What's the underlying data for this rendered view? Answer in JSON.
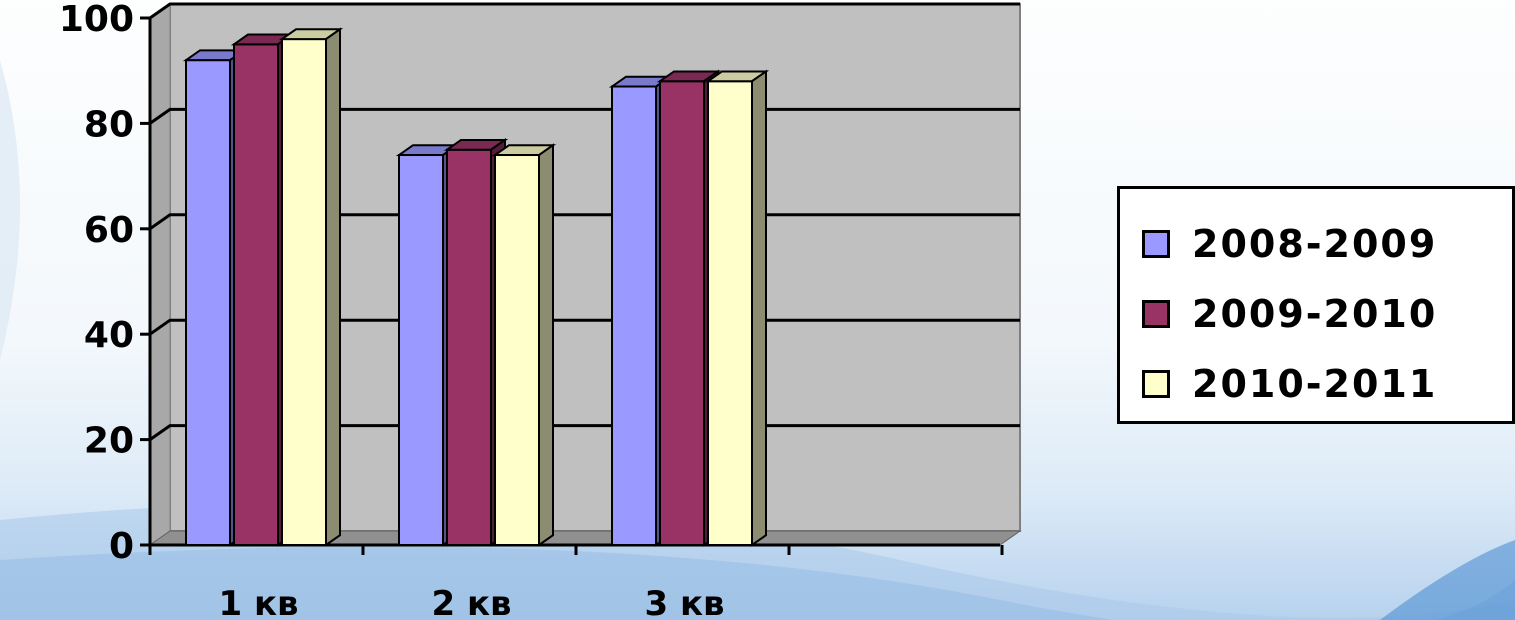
{
  "chart_data": {
    "type": "bar",
    "categories": [
      "1 кв",
      "2 кв",
      "3 кв"
    ],
    "series": [
      {
        "name": "2008-2009",
        "color": "#9999ff",
        "values": [
          92,
          74,
          87
        ]
      },
      {
        "name": "2009-2010",
        "color": "#993366",
        "values": [
          95,
          75,
          88
        ]
      },
      {
        "name": "2010-2011",
        "color": "#ffffcc",
        "values": [
          96,
          74,
          88
        ]
      }
    ],
    "title": "",
    "xlabel": "",
    "ylabel": "",
    "ylim": [
      0,
      100
    ],
    "yticks": [
      "0",
      "20",
      "40",
      "60",
      "80",
      "100"
    ],
    "grid": true,
    "legend_position": "right",
    "wall_color": "#c0c0c0"
  }
}
